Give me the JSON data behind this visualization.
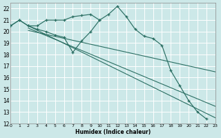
{
  "xlabel": "Humidex (Indice chaleur)",
  "background_color": "#cce8e8",
  "grid_color": "#ffffff",
  "line_color": "#2a6e62",
  "xlim": [
    0,
    23
  ],
  "ylim": [
    12,
    22.5
  ],
  "yticks": [
    12,
    13,
    14,
    15,
    16,
    17,
    18,
    19,
    20,
    21,
    22
  ],
  "xticks": [
    0,
    1,
    2,
    3,
    4,
    5,
    6,
    7,
    8,
    9,
    10,
    11,
    12,
    13,
    14,
    15,
    16,
    17,
    18,
    19,
    20,
    21,
    22,
    23
  ],
  "series1_x": [
    0,
    1,
    2,
    3,
    4,
    5,
    6,
    7,
    8,
    9,
    10,
    11,
    12,
    13,
    14,
    15,
    16,
    17,
    18,
    19,
    20,
    21,
    22
  ],
  "series1_y": [
    20.5,
    21.0,
    20.5,
    20.5,
    21.0,
    21.0,
    21.0,
    21.3,
    21.4,
    21.5,
    21.0,
    21.5,
    22.2,
    21.3,
    20.2,
    19.6,
    19.4,
    18.8,
    16.6,
    15.3,
    14.0,
    13.0,
    12.4
  ],
  "series2_x": [
    0,
    1,
    2,
    3,
    4,
    5,
    6,
    7,
    8,
    9,
    10
  ],
  "series2_y": [
    20.5,
    21.0,
    20.5,
    20.2,
    20.0,
    19.7,
    19.5,
    18.2,
    19.2,
    20.0,
    21.0
  ],
  "trend1_x": [
    2,
    23
  ],
  "trend1_y": [
    20.5,
    12.5
  ],
  "trend2_x": [
    2,
    23
  ],
  "trend2_y": [
    20.3,
    13.5
  ],
  "trend3_x": [
    2,
    23
  ],
  "trend3_y": [
    20.1,
    16.5
  ]
}
